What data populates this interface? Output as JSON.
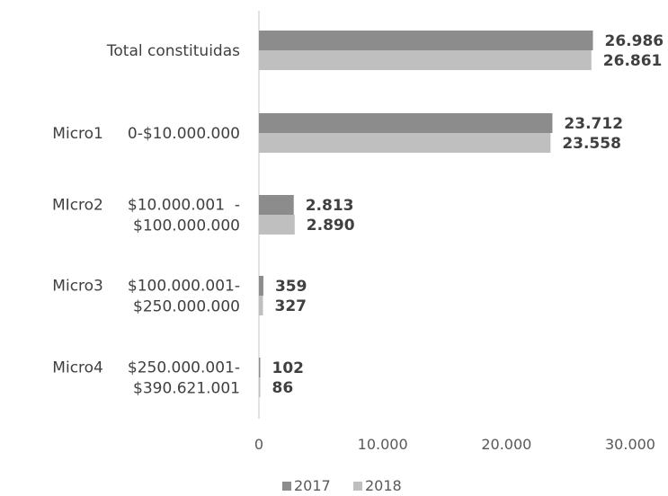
{
  "chart_data": {
    "type": "bar",
    "orientation": "horizontal",
    "categories": [
      [
        "Total constituidas"
      ],
      [
        "Micro1     0-$10.000.000"
      ],
      [
        "MIcro2     $10.000.001  -",
        "$100.000.000"
      ],
      [
        "Micro3     $100.000.001-",
        "$250.000.000"
      ],
      [
        "Micro4     $250.000.001-",
        "$390.621.001"
      ]
    ],
    "series": [
      {
        "name": "2017",
        "color": "#8c8c8c",
        "values": [
          26986,
          23712,
          2813,
          359,
          102
        ],
        "labels": [
          "26.986",
          "23.712",
          "2.813",
          "359",
          "102"
        ]
      },
      {
        "name": "2018",
        "color": "#bfbfbf",
        "values": [
          26861,
          23558,
          2890,
          327,
          86
        ],
        "labels": [
          "26.861",
          "23.558",
          "2.890",
          "327",
          "86"
        ]
      }
    ],
    "xlim": [
      0,
      30000
    ],
    "xticks": [
      0,
      10000,
      20000,
      30000
    ],
    "xtick_labels": [
      "0",
      "10.000",
      "20.000",
      "30.000"
    ],
    "grid": false,
    "legend_position": "bottom"
  }
}
